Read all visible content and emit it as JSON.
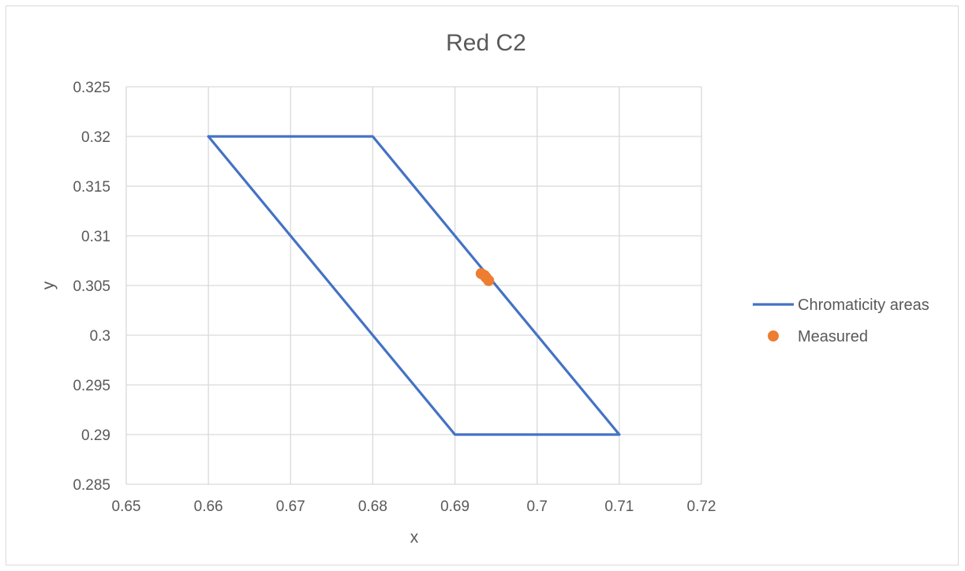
{
  "chart_data": {
    "type": "scatter",
    "title": "Red C2",
    "xlabel": "x",
    "ylabel": "y",
    "xlim": [
      0.65,
      0.72
    ],
    "ylim": [
      0.285,
      0.325
    ],
    "xticks": [
      0.65,
      0.66,
      0.67,
      0.68,
      0.69,
      0.7,
      0.71,
      0.72
    ],
    "yticks": [
      0.285,
      0.29,
      0.295,
      0.3,
      0.305,
      0.31,
      0.315,
      0.32,
      0.325
    ],
    "xtick_labels": [
      "0.65",
      "0.66",
      "0.67",
      "0.68",
      "0.69",
      "0.7",
      "0.71",
      "0.72"
    ],
    "ytick_labels": [
      "0.285",
      "0.29",
      "0.295",
      "0.3",
      "0.305",
      "0.31",
      "0.315",
      "0.32",
      "0.325"
    ],
    "grid": true,
    "legend_position": "right",
    "series": [
      {
        "name": "Chromaticity areas",
        "kind": "line",
        "color": "#4472C4",
        "x": [
          0.66,
          0.68,
          0.71,
          0.69,
          0.66
        ],
        "y": [
          0.32,
          0.32,
          0.29,
          0.29,
          0.32
        ]
      },
      {
        "name": "Measured",
        "kind": "marker",
        "color": "#ED7D31",
        "x": [
          0.6932,
          0.6936,
          0.6938,
          0.6941
        ],
        "y": [
          0.3062,
          0.306,
          0.3058,
          0.3055
        ]
      }
    ]
  }
}
